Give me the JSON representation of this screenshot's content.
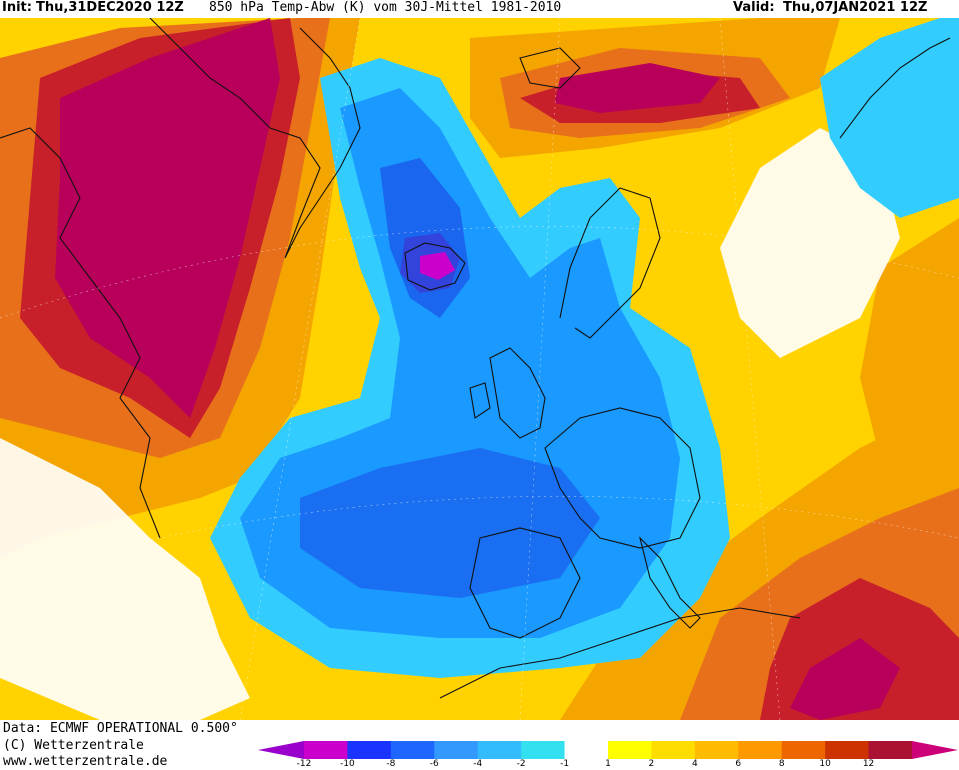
{
  "header": {
    "init_label": "Init:",
    "init_value": "Thu,31DEC2020 12Z",
    "parameter": "850 hPa Temp-Abw (K) vom 30J-Mittel 1981-2010",
    "valid_label": "Valid:",
    "valid_value": "Thu,07JAN2021 12Z"
  },
  "footer": {
    "data_line": "Data: ECMWF OPERATIONAL 0.500°",
    "copyright_line": "(C) Wetterzentrale",
    "url_line": "www.wetterzentrale.de"
  },
  "colorbar": {
    "ticks": [
      "-12",
      "-10",
      "-8",
      "-6",
      "-4",
      "-2",
      "-1",
      "1",
      "2",
      "4",
      "6",
      "8",
      "10",
      "12"
    ],
    "colors": [
      "#9900cc",
      "#cc00cc",
      "#1a33ff",
      "#1f66ff",
      "#3399ff",
      "#33bbff",
      "#33e0f0",
      "#ffffff",
      "#ffff00",
      "#ffdd00",
      "#ffbb00",
      "#ff9900",
      "#ee6600",
      "#cc3300",
      "#aa1133",
      "#cc0077"
    ]
  },
  "map_colors": {
    "warm_deep": "#b8005a",
    "warm_red": "#c8202a",
    "warm_orange": "#e8701a",
    "warm_amber": "#f5a500",
    "warm_yellow": "#ffd200",
    "cold_light": "#33ccff",
    "cold_mid": "#1a99ff",
    "cold_deep": "#1a66ee",
    "cold_core": "#3344dd",
    "neutral": "#ffffff",
    "coast": "#111111"
  }
}
